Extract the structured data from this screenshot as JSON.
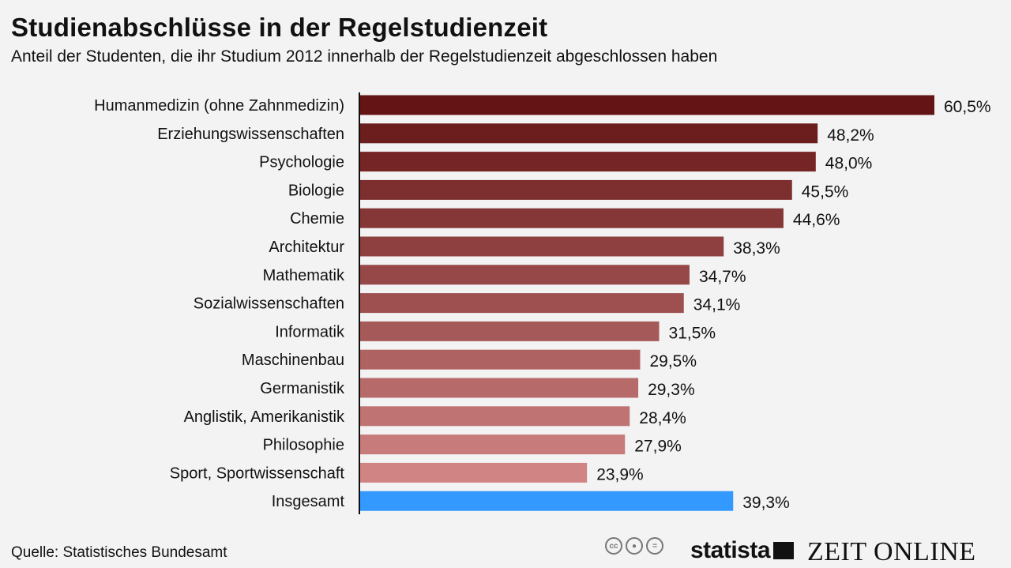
{
  "chart_data": {
    "type": "bar",
    "orientation": "horizontal",
    "title": "Studienabschlüsse in der Regelstudienzeit",
    "subtitle": "Anteil der Studenten, die ihr Studium 2012 innerhalb der Regelstudienzeit abgeschlossen haben",
    "categories": [
      "Humanmedizin (ohne Zahnmedizin)",
      "Erziehungswissenschaften",
      "Psychologie",
      "Biologie",
      "Chemie",
      "Architektur",
      "Mathematik",
      "Sozialwissenschaften",
      "Informatik",
      "Maschinenbau",
      "Germanistik",
      "Anglistik, Amerikanistik",
      "Philosophie",
      "Sport, Sportwissenschaft",
      "Insgesamt"
    ],
    "values": [
      60.5,
      48.2,
      48.0,
      45.5,
      44.6,
      38.3,
      34.7,
      34.1,
      31.5,
      29.5,
      29.3,
      28.4,
      27.9,
      23.9,
      39.3
    ],
    "data_labels": [
      "60,5%",
      "48,2%",
      "48,0%",
      "45,5%",
      "44,6%",
      "38,3%",
      "34,7%",
      "34,1%",
      "31,5%",
      "29,5%",
      "29,3%",
      "28,4%",
      "27,9%",
      "23,9%",
      "39,3%"
    ],
    "unit": "%",
    "xlim": [
      0,
      60.5
    ],
    "grid": false,
    "colors": {
      "gradient_start": "#641414",
      "gradient_end": "#d08484",
      "highlight": "#3399ff",
      "axis": "#111111"
    }
  },
  "source": "Quelle: Statistisches Bundesamt",
  "logos": {
    "statista": "statista",
    "zeit": "ZEIT ONLINE",
    "cc": [
      "cc",
      "by",
      "nd"
    ]
  }
}
